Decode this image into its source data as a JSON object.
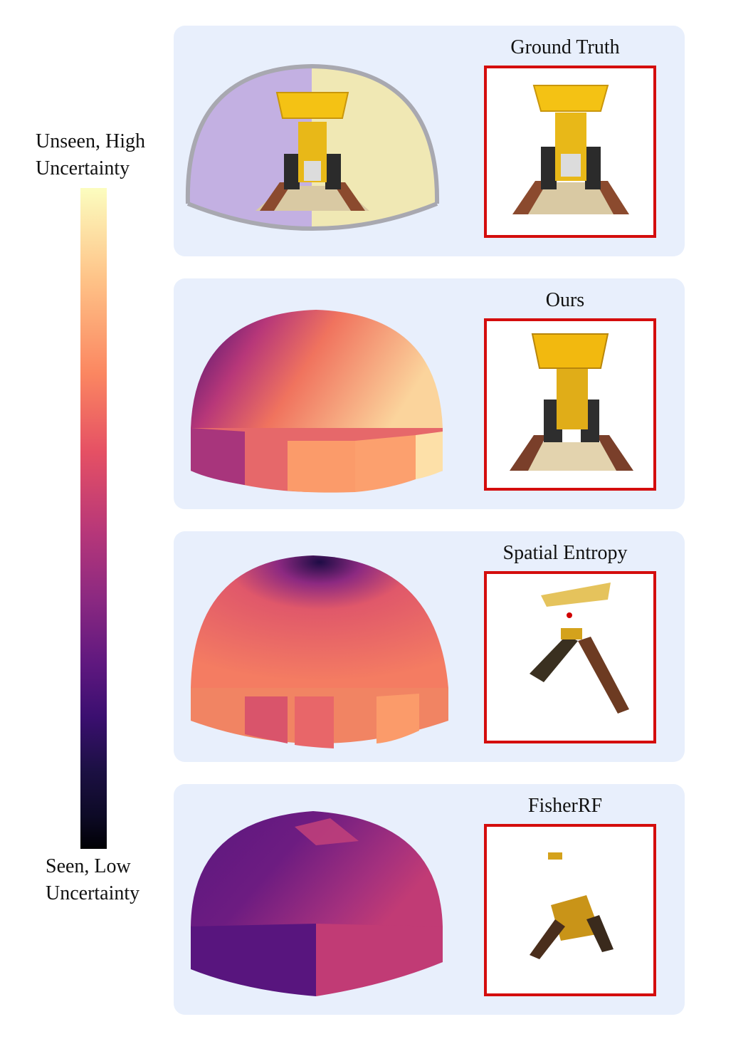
{
  "colorbar": {
    "top_label_line1": "Unseen, High",
    "top_label_line2": "Uncertainty",
    "bottom_label_line1": "Seen, Low",
    "bottom_label_line2": "Uncertainty",
    "colormap": "magma"
  },
  "panels": [
    {
      "title": "Ground Truth",
      "dome_style": "hemisphere-half-purple-half-yellow"
    },
    {
      "title": "Ours",
      "dome_style": "uncertainty-dome-mostly-high"
    },
    {
      "title": "Spatial Entropy",
      "dome_style": "uncertainty-dome-mid-high"
    },
    {
      "title": "FisherRF",
      "dome_style": "uncertainty-dome-mostly-low"
    }
  ],
  "colors": {
    "panel_bg": "#e8effc",
    "frame_border": "#d40d0d",
    "lego_yellow": "#f4c214"
  }
}
